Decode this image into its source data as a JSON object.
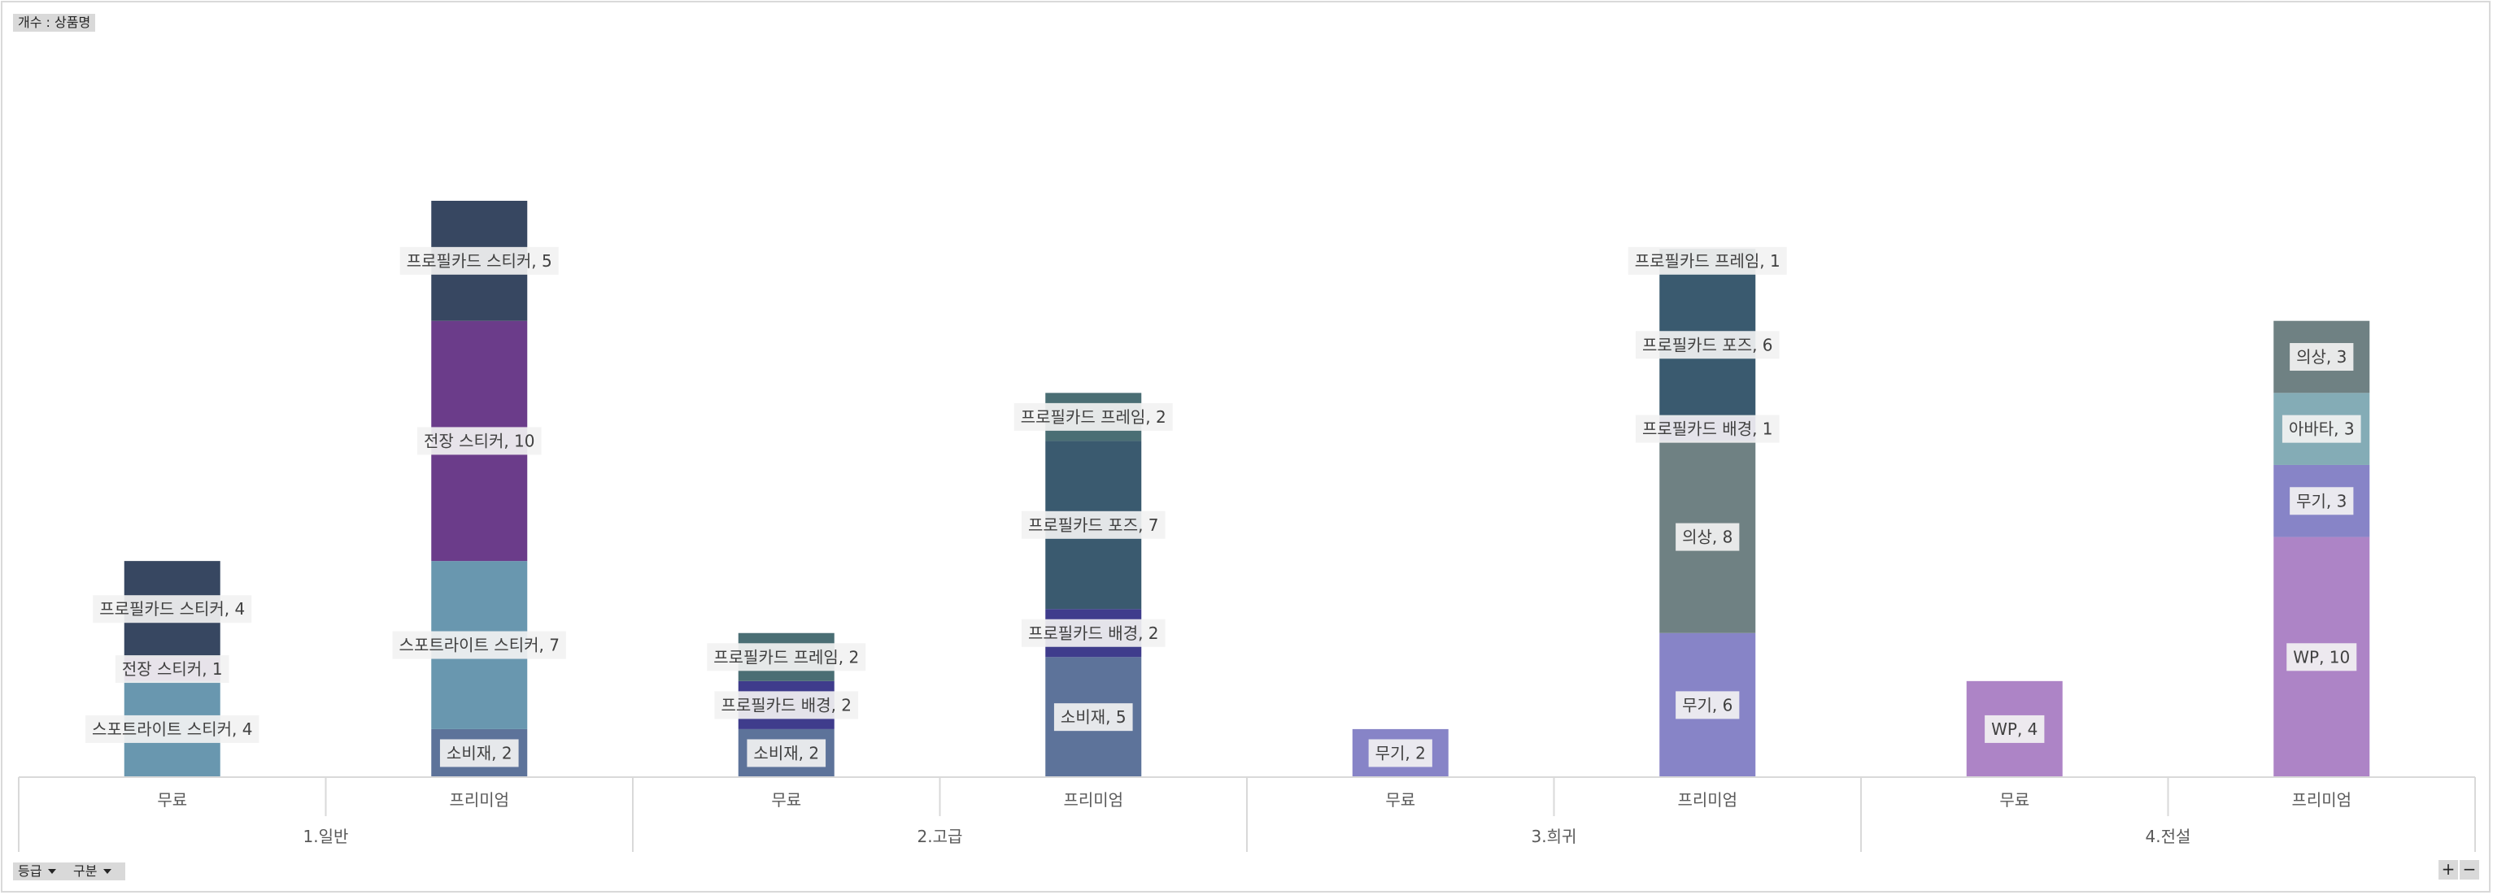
{
  "ui": {
    "values_field": "개수 : 상품명",
    "axis_fields": [
      "등급",
      "구분"
    ],
    "zoom_in": "+",
    "zoom_out": "−"
  },
  "chart_data": {
    "type": "bar",
    "stacked": true,
    "legend": "none",
    "grid": false,
    "ylim": [
      0,
      24
    ],
    "groups": [
      "1.일반",
      "2.고급",
      "3.희귀",
      "4.전설"
    ],
    "categories": [
      {
        "group": "1.일반",
        "label": "무료"
      },
      {
        "group": "1.일반",
        "label": "프리미엄"
      },
      {
        "group": "2.고급",
        "label": "무료"
      },
      {
        "group": "2.고급",
        "label": "프리미엄"
      },
      {
        "group": "3.희귀",
        "label": "무료"
      },
      {
        "group": "3.희귀",
        "label": "프리미엄"
      },
      {
        "group": "4.전설",
        "label": "무료"
      },
      {
        "group": "4.전설",
        "label": "프리미엄"
      }
    ],
    "series": [
      {
        "name": "WP",
        "color": "#ad84c6"
      },
      {
        "name": "무기",
        "color": "#8784c7"
      },
      {
        "name": "소비재",
        "color": "#5d739a"
      },
      {
        "name": "스포트라이트 스티커",
        "color": "#6997af"
      },
      {
        "name": "아바타",
        "color": "#84acb6"
      },
      {
        "name": "의상",
        "color": "#6f8183"
      },
      {
        "name": "전장 스티커",
        "color": "#6b3c8a"
      },
      {
        "name": "프로필카드 배경",
        "color": "#3f3c8c"
      },
      {
        "name": "프로필카드 포즈",
        "color": "#3a5a6f"
      },
      {
        "name": "프로필카드 프레임",
        "color": "#4a6e74"
      },
      {
        "name": "프로필카드 스티커",
        "color": "#374761"
      }
    ],
    "bars": [
      [
        {
          "series": "스포트라이트 스티커",
          "value": 4,
          "label": "스포트라이트 스티커, 4"
        },
        {
          "series": "전장 스티커",
          "value": 1,
          "label": "전장 스티커, 1"
        },
        {
          "series": "프로필카드 스티커",
          "value": 4,
          "label": "프로필카드 스티커, 4"
        }
      ],
      [
        {
          "series": "소비재",
          "value": 2,
          "label": "소비재, 2"
        },
        {
          "series": "스포트라이트 스티커",
          "value": 7,
          "label": "스포트라이트 스티커, 7"
        },
        {
          "series": "전장 스티커",
          "value": 10,
          "label": "전장 스티커, 10"
        },
        {
          "series": "프로필카드 스티커",
          "value": 5,
          "label": "프로필카드 스티커, 5"
        }
      ],
      [
        {
          "series": "소비재",
          "value": 2,
          "label": "소비재, 2"
        },
        {
          "series": "프로필카드 배경",
          "value": 2,
          "label": "프로필카드 배경, 2"
        },
        {
          "series": "프로필카드 프레임",
          "value": 2,
          "label": "프로필카드 프레임, 2"
        }
      ],
      [
        {
          "series": "소비재",
          "value": 5,
          "label": "소비재, 5"
        },
        {
          "series": "프로필카드 배경",
          "value": 2,
          "label": "프로필카드 배경, 2"
        },
        {
          "series": "프로필카드 포즈",
          "value": 7,
          "label": "프로필카드 포즈, 7"
        },
        {
          "series": "프로필카드 프레임",
          "value": 2,
          "label": "프로필카드 프레임, 2"
        }
      ],
      [
        {
          "series": "무기",
          "value": 2,
          "label": "무기, 2"
        }
      ],
      [
        {
          "series": "무기",
          "value": 6,
          "label": "무기, 6"
        },
        {
          "series": "의상",
          "value": 8,
          "label": "의상, 8"
        },
        {
          "series": "프로필카드 배경",
          "value": 1,
          "label": "프로필카드 배경, 1"
        },
        {
          "series": "프로필카드 포즈",
          "value": 6,
          "label": "프로필카드 포즈, 6"
        },
        {
          "series": "프로필카드 프레임",
          "value": 1,
          "label": "프로필카드 프레임, 1"
        }
      ],
      [
        {
          "series": "WP",
          "value": 4,
          "label": "WP, 4"
        }
      ],
      [
        {
          "series": "WP",
          "value": 10,
          "label": "WP, 10"
        },
        {
          "series": "무기",
          "value": 3,
          "label": "무기, 3"
        },
        {
          "series": "아바타",
          "value": 3,
          "label": "아바타, 3"
        },
        {
          "series": "의상",
          "value": 3,
          "label": "의상, 3"
        }
      ]
    ]
  }
}
